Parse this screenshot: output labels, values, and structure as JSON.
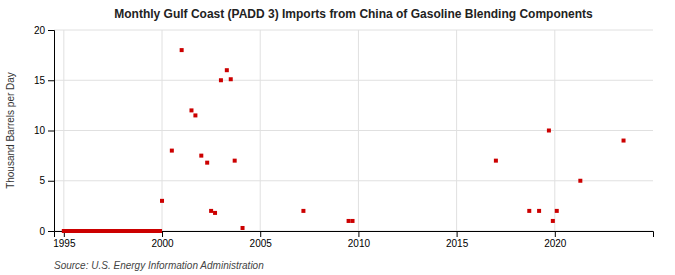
{
  "chart_data": {
    "type": "scatter",
    "title": "Monthly Gulf Coast (PADD 3) Imports from China of Gasoline Blending Components",
    "ylabel": "Thousand Barrels per Day",
    "source": "Source: U.S. Energy Information Administration",
    "color": "#cc0000",
    "marker": "square",
    "grid": true,
    "xlim": [
      1994.5,
      2025
    ],
    "ylim": [
      0,
      20
    ],
    "xticks": [
      1995,
      2000,
      2005,
      2010,
      2015,
      2020
    ],
    "yticks": [
      0,
      5,
      10,
      15,
      20
    ],
    "x": [
      1995.0,
      1995.1,
      1995.2,
      1995.3,
      1995.4,
      1995.5,
      1995.6,
      1995.7,
      1995.8,
      1995.9,
      1996.0,
      1996.1,
      1996.2,
      1996.3,
      1996.4,
      1996.5,
      1996.6,
      1996.7,
      1996.8,
      1996.9,
      1997.0,
      1997.1,
      1997.2,
      1997.3,
      1997.4,
      1997.5,
      1997.6,
      1997.7,
      1997.8,
      1997.9,
      1998.0,
      1998.1,
      1998.2,
      1998.3,
      1998.4,
      1998.5,
      1998.6,
      1998.7,
      1998.8,
      1998.9,
      1999.0,
      1999.1,
      1999.2,
      1999.3,
      1999.4,
      1999.5,
      1999.6,
      1999.7,
      1999.8,
      1999.9,
      2000.0,
      2000.5,
      2001.0,
      2001.5,
      2001.7,
      2002.0,
      2002.3,
      2002.5,
      2002.7,
      2003.0,
      2003.3,
      2003.5,
      2003.7,
      2004.1,
      2007.2,
      2009.5,
      2009.7,
      2017.0,
      2018.7,
      2019.2,
      2019.7,
      2019.9,
      2020.1,
      2021.3,
      2023.5
    ],
    "values": [
      0.0,
      0.0,
      0.0,
      0.0,
      0.0,
      0.0,
      0.0,
      0.0,
      0.0,
      0.0,
      0.0,
      0.0,
      0.0,
      0.0,
      0.0,
      0.0,
      0.0,
      0.0,
      0.0,
      0.0,
      0.0,
      0.0,
      0.0,
      0.0,
      0.0,
      0.0,
      0.0,
      0.0,
      0.0,
      0.0,
      0.0,
      0.0,
      0.0,
      0.0,
      0.0,
      0.0,
      0.0,
      0.0,
      0.0,
      0.0,
      0.0,
      0.0,
      0.0,
      0.0,
      0.0,
      0.0,
      0.0,
      0.0,
      0.0,
      0.0,
      3.0,
      8.0,
      18.0,
      12.0,
      11.5,
      7.5,
      6.8,
      2.0,
      1.8,
      15.0,
      16.0,
      15.1,
      7.0,
      0.3,
      2.0,
      1.0,
      1.0,
      7.0,
      2.0,
      2.0,
      10.0,
      1.0,
      2.0,
      5.0,
      9.0
    ]
  }
}
